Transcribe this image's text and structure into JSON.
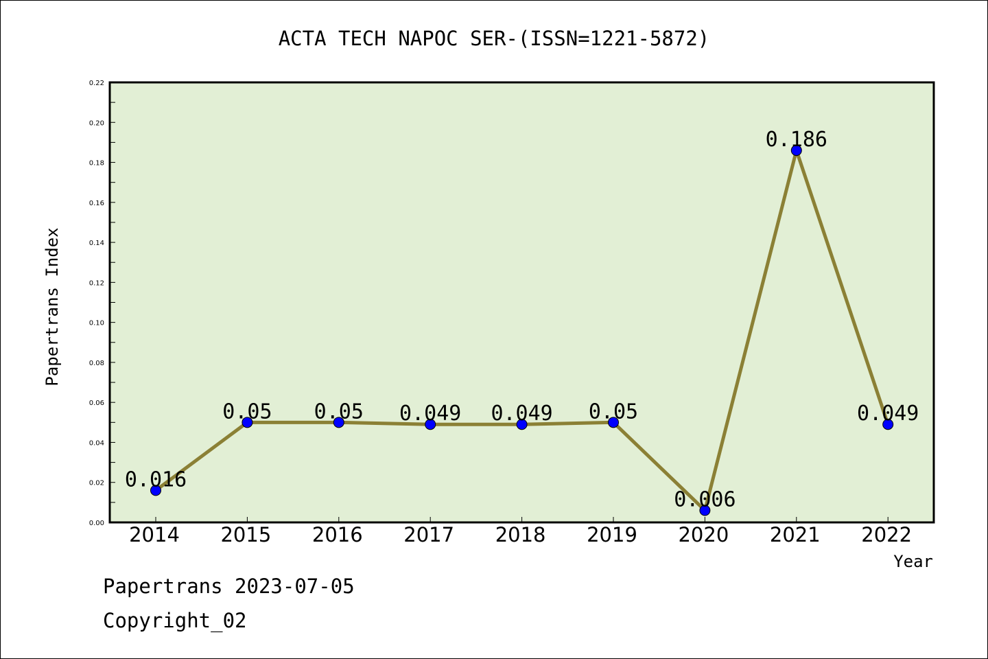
{
  "chart_data": {
    "type": "line",
    "title": "ACTA TECH NAPOC SER-(ISSN=1221-5872)",
    "xlabel": "Year",
    "ylabel": "Papertrans Index",
    "categories": [
      "2014",
      "2015",
      "2016",
      "2017",
      "2018",
      "2019",
      "2020",
      "2021",
      "2022"
    ],
    "values": [
      0.016,
      0.05,
      0.05,
      0.049,
      0.049,
      0.05,
      0.006,
      0.186,
      0.049
    ],
    "data_labels": [
      "0.016",
      "0.05",
      "0.05",
      "0.049",
      "0.049",
      "0.05",
      "0.006",
      "0.186",
      "0.049"
    ],
    "ylim": [
      0,
      0.22
    ],
    "yticks": [
      "0.00",
      "0.02",
      "0.04",
      "0.06",
      "0.08",
      "0.10",
      "0.12",
      "0.14",
      "0.16",
      "0.18",
      "0.20",
      "0.22"
    ],
    "grid": false,
    "colors": {
      "plot_background": "#e2efd5",
      "line": "#8b8035",
      "marker": "#0000ff"
    }
  },
  "footer": {
    "date_text": "Papertrans 2023-07-05",
    "copyright_text": "Copyright_02"
  }
}
